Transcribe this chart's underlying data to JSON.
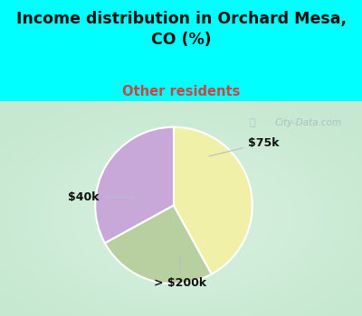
{
  "title": "Income distribution in Orchard Mesa,\nCO (%)",
  "subtitle": "Other residents",
  "slices": [
    {
      "label": "$75k",
      "value": 33,
      "color": "#c8a8d8"
    },
    {
      "label": "> $200k",
      "value": 25,
      "color": "#b8cfa0"
    },
    {
      "label": "$40k",
      "value": 42,
      "color": "#f0f0a8"
    }
  ],
  "start_angle": 90,
  "background_top": "#00ffff",
  "background_pie": "#c8e8d0",
  "title_color": "#111111",
  "subtitle_color": "#cc4444",
  "label_color": "#111111",
  "line_color": "#bbbbcc",
  "watermark_text": "City-Data.com",
  "watermark_color": "#a8b8c0",
  "label_fontsize": 9,
  "title_fontsize": 12.5
}
